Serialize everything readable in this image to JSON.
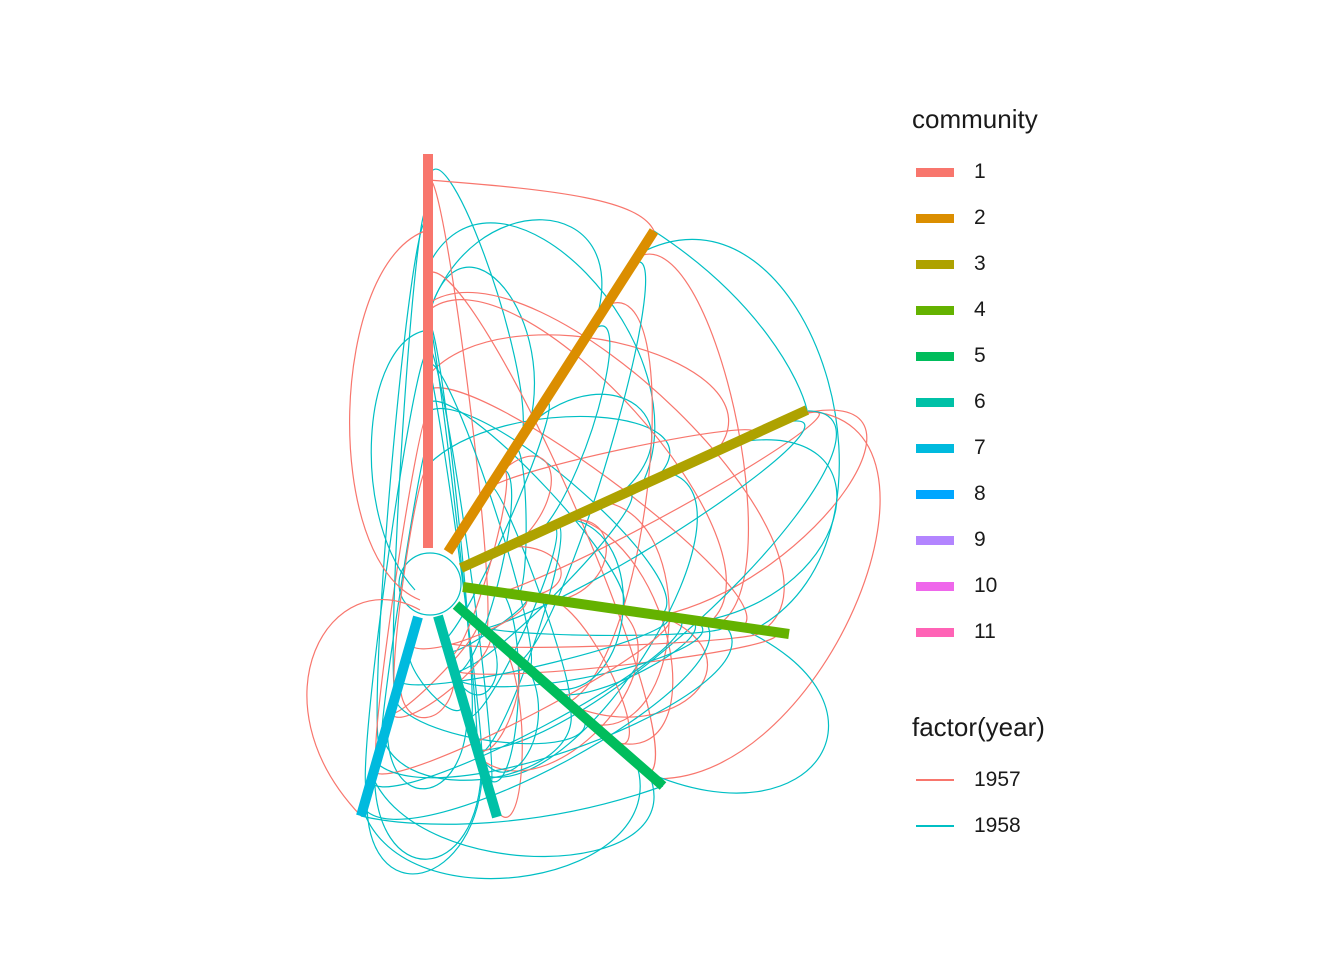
{
  "legend_community": {
    "title": "community",
    "items": [
      {
        "label": "1",
        "color": "#F8766D"
      },
      {
        "label": "2",
        "color": "#DB8E00"
      },
      {
        "label": "3",
        "color": "#AEA200"
      },
      {
        "label": "4",
        "color": "#64B200"
      },
      {
        "label": "5",
        "color": "#00BD5C"
      },
      {
        "label": "6",
        "color": "#00C1A7"
      },
      {
        "label": "7",
        "color": "#00BADE"
      },
      {
        "label": "8",
        "color": "#00A6FF"
      },
      {
        "label": "9",
        "color": "#B385FF"
      },
      {
        "label": "10",
        "color": "#EF67EB"
      },
      {
        "label": "11",
        "color": "#FF63B6"
      }
    ]
  },
  "legend_year": {
    "title": "factor(year)",
    "items": [
      {
        "label": "1957",
        "color": "#F8766D"
      },
      {
        "label": "1958",
        "color": "#00BFC4"
      }
    ]
  },
  "hive_plot": {
    "axes": [
      {
        "community": "1",
        "color": "#F8766D"
      },
      {
        "community": "2",
        "color": "#DB8E00"
      },
      {
        "community": "3",
        "color": "#AEA200"
      },
      {
        "community": "4",
        "color": "#64B200"
      },
      {
        "community": "5",
        "color": "#00BD5C"
      },
      {
        "community": "6",
        "color": "#00C1A7"
      },
      {
        "community": "7",
        "color": "#00BADE"
      }
    ]
  }
}
